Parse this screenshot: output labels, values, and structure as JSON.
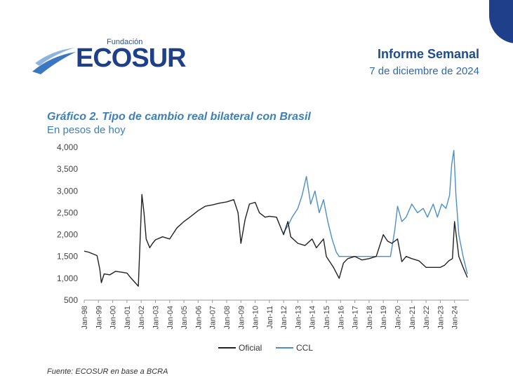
{
  "header": {
    "logo_small": "Fundación",
    "logo_brand": "ECOSUR",
    "report_title": "Informe Semanal",
    "report_date": "7 de diciembre de 2024",
    "accent_color": "#1f3f8a",
    "title_color": "#3d7fb8"
  },
  "chart_data": {
    "type": "line",
    "title": "Gráfico 2. Tipo de cambio real bilateral con Brasil",
    "subtitle": "En pesos de hoy",
    "xlabel": "",
    "ylabel": "",
    "ylim": [
      500,
      4000
    ],
    "yticks": [
      "4,000",
      "3,500",
      "3,000",
      "2,500",
      "2,000",
      "1,500",
      "1,000",
      "500"
    ],
    "xlim": [
      1998.0,
      2025.0
    ],
    "xticks": [
      "Jan-98",
      "Jan-99",
      "Jan-00",
      "Jan-01",
      "Jan-02",
      "Jan-03",
      "Jan-04",
      "Jan-05",
      "Jan-06",
      "Jan-07",
      "Jan-08",
      "Jan-09",
      "Jan-10",
      "Jan-11",
      "Jan-12",
      "Jan-13",
      "Jan-14",
      "Jan-15",
      "Jan-16",
      "Jan-17",
      "Jan-18",
      "Jan-19",
      "Jan-20",
      "Jan-21",
      "Jan-22",
      "Jan-23",
      "Jan-24"
    ],
    "grid": false,
    "legend_position": "bottom",
    "series": [
      {
        "name": "Oficial",
        "color": "#222222",
        "x": [
          1998.0,
          1998.3,
          1998.6,
          1998.9,
          1999.1,
          1999.2,
          1999.4,
          1999.8,
          2000.2,
          2000.6,
          2001.0,
          2001.3,
          2001.8,
          2002.05,
          2002.2,
          2002.35,
          2002.6,
          2002.8,
          2003.0,
          2003.5,
          2004.0,
          2004.5,
          2005.0,
          2005.5,
          2006.0,
          2006.5,
          2007.0,
          2007.5,
          2008.0,
          2008.5,
          2008.8,
          2009.0,
          2009.3,
          2009.6,
          2010.0,
          2010.3,
          2010.7,
          2011.0,
          2011.5,
          2012.0,
          2012.3,
          2012.5,
          2013.0,
          2013.5,
          2014.0,
          2014.3,
          2014.8,
          2015.0,
          2015.5,
          2015.9,
          2016.2,
          2016.5,
          2017.0,
          2017.5,
          2018.0,
          2018.5,
          2019.0,
          2019.3,
          2019.6,
          2020.0,
          2020.3,
          2020.6,
          2021.0,
          2021.5,
          2022.0,
          2022.5,
          2023.0,
          2023.3,
          2023.6,
          2023.85,
          2024.0,
          2024.3,
          2024.6,
          2024.9
        ],
        "values": [
          1620,
          1600,
          1560,
          1520,
          1200,
          900,
          1100,
          1080,
          1160,
          1140,
          1120,
          1000,
          820,
          2920,
          2500,
          1900,
          1700,
          1800,
          1880,
          1950,
          1900,
          2150,
          2300,
          2420,
          2550,
          2650,
          2680,
          2720,
          2750,
          2800,
          2500,
          1800,
          2350,
          2700,
          2740,
          2500,
          2400,
          2420,
          2400,
          2000,
          2300,
          1950,
          1800,
          1750,
          1900,
          1700,
          1900,
          1500,
          1250,
          1000,
          1350,
          1450,
          1500,
          1420,
          1450,
          1500,
          2000,
          1850,
          1800,
          1900,
          1380,
          1500,
          1450,
          1400,
          1250,
          1250,
          1250,
          1300,
          1400,
          1450,
          2300,
          1500,
          1250,
          1020
        ]
      },
      {
        "name": "CCL",
        "color": "#4a8fc8",
        "x": [
          2012.0,
          2012.3,
          2012.6,
          2013.0,
          2013.3,
          2013.6,
          2013.9,
          2014.2,
          2014.5,
          2014.8,
          2015.1,
          2015.4,
          2015.7,
          2015.9,
          2019.5,
          2019.8,
          2020.0,
          2020.3,
          2020.6,
          2021.0,
          2021.4,
          2021.8,
          2022.1,
          2022.5,
          2022.8,
          2023.1,
          2023.4,
          2023.65,
          2023.8,
          2023.95,
          2024.1,
          2024.3,
          2024.6,
          2024.9
        ],
        "values": [
          2050,
          2200,
          2400,
          2600,
          2900,
          3330,
          2700,
          3000,
          2500,
          2800,
          2300,
          1900,
          1600,
          1500,
          1500,
          2100,
          2650,
          2300,
          2400,
          2700,
          2500,
          2600,
          2400,
          2700,
          2400,
          2700,
          2600,
          2900,
          3600,
          3930,
          2900,
          2000,
          1500,
          1100
        ]
      }
    ],
    "source_note": "Fuente: ECOSUR en base a BCRA"
  }
}
